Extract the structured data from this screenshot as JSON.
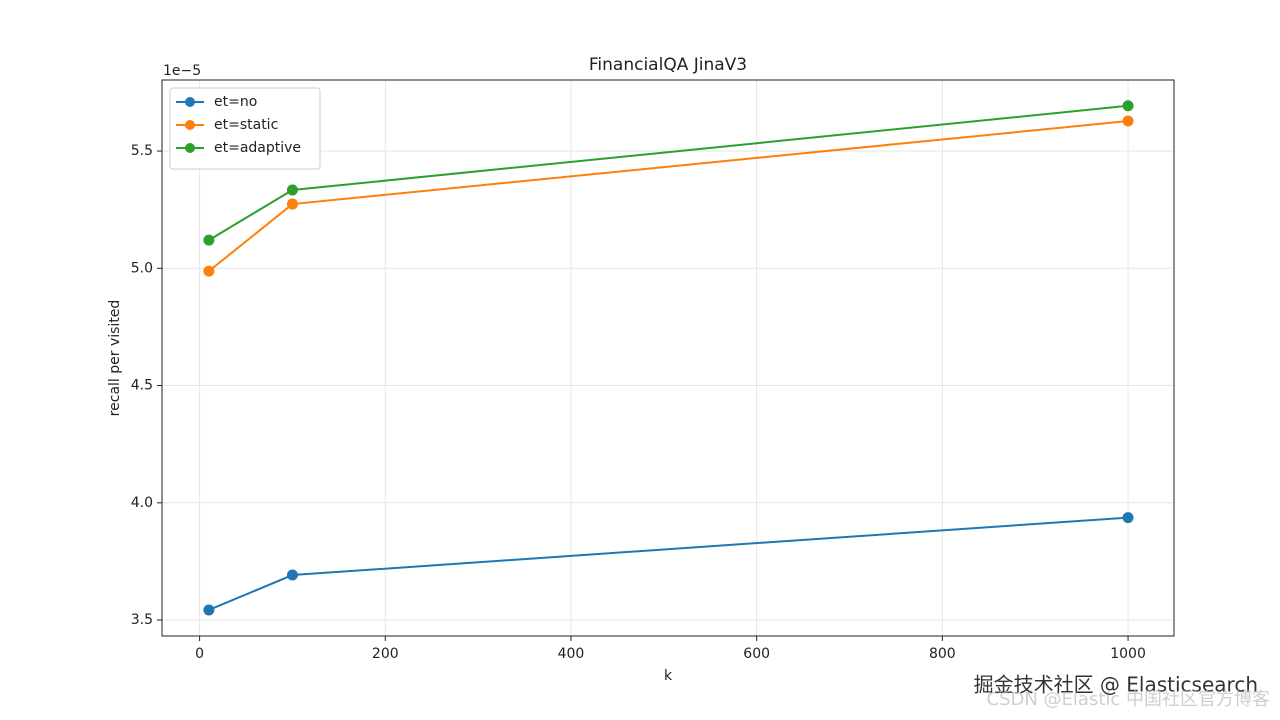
{
  "chart_data": {
    "type": "line",
    "title": "FinancialQA JinaV3",
    "x_label": "k",
    "y_label": "recall per visited",
    "y_offset_label": "1e−5",
    "x": [
      10,
      100,
      1000
    ],
    "series": [
      {
        "name": "et=no",
        "color": "#1f77b4",
        "values": [
          3.543,
          3.692,
          3.937
        ]
      },
      {
        "name": "et=static",
        "color": "#ff7f0e",
        "values": [
          4.988,
          5.274,
          5.628
        ]
      },
      {
        "name": "et=adaptive",
        "color": "#2ca02c",
        "values": [
          5.12,
          5.334,
          5.693
        ]
      }
    ],
    "xlim": [
      -40.5,
      1049.5
    ],
    "xticks": [
      0,
      200,
      400,
      600,
      800,
      1000
    ],
    "ylim": [
      3.432,
      5.803
    ],
    "yticks": [
      3.5,
      {
        "value": 4,
        "label": "4.0"
      },
      4.5,
      {
        "value": 5,
        "label": "5.0"
      },
      5.5
    ],
    "grid": true,
    "legend": "upper left",
    "watermarks": [
      "掘金技术社区 @ Elasticsearch",
      "CSDN @Elastic 中国社区官方博客"
    ]
  }
}
